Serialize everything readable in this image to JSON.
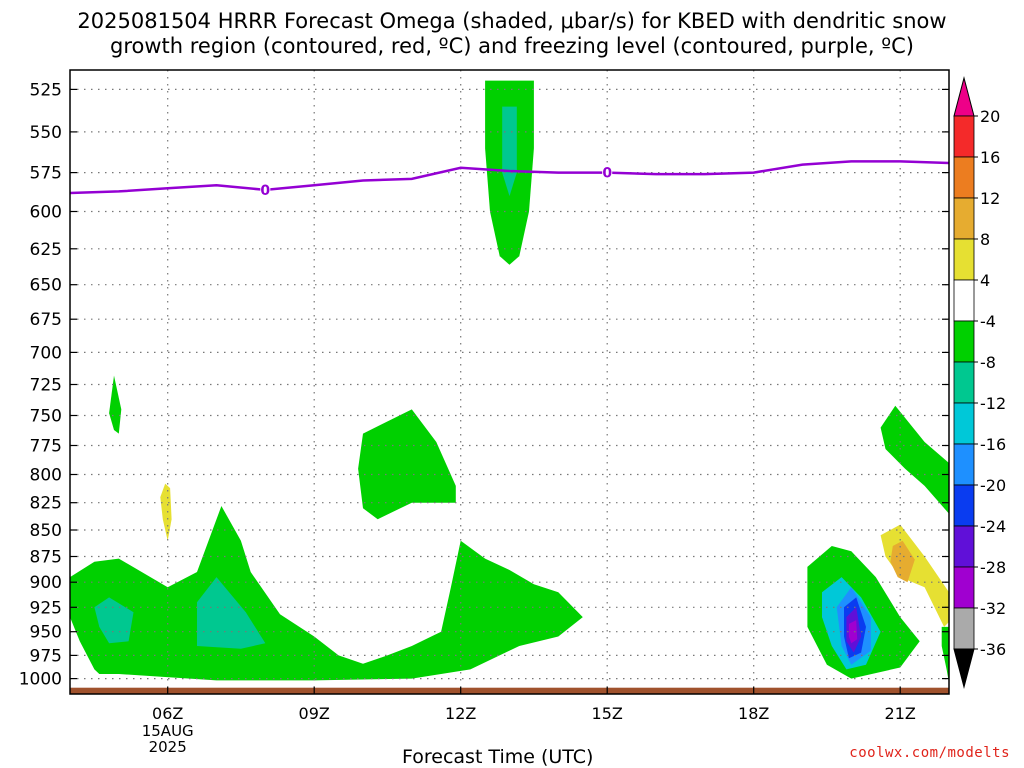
{
  "title_line1": "2025081504 HRRR Forecast Omega (shaded, μbar/s) for KBED with dendritic snow",
  "title_line2": "growth region (contoured, red, ºC) and freezing level (contoured, purple, ºC)",
  "credit": "coolwx.com/modelts",
  "chart_data": {
    "type": "heatmap",
    "xlabel": "Forecast Time (UTC)",
    "x_ticks": [
      {
        "hour": 6,
        "label": "06Z",
        "sub": [
          "15AUG",
          "2025"
        ]
      },
      {
        "hour": 9,
        "label": "09Z"
      },
      {
        "hour": 12,
        "label": "12Z"
      },
      {
        "hour": 15,
        "label": "15Z"
      },
      {
        "hour": 18,
        "label": "18Z"
      },
      {
        "hour": 21,
        "label": "21Z"
      }
    ],
    "x_range_hours": [
      4,
      22
    ],
    "y_ticks": [
      525,
      550,
      575,
      600,
      625,
      650,
      675,
      700,
      725,
      750,
      775,
      800,
      825,
      850,
      875,
      900,
      925,
      950,
      975,
      1000
    ],
    "y_range_hPa": [
      514,
      1017
    ],
    "y_scale": "log-pressure",
    "grid": "dotted",
    "colorbar": {
      "labels": [
        "20",
        "16",
        "12",
        "8",
        "4",
        "-4",
        "-8",
        "-12",
        "-16",
        "-20",
        "-24",
        "-28",
        "-32",
        "-36"
      ],
      "colors": [
        "#ee0088",
        "#f42a2a",
        "#ec7d20",
        "#e6ac30",
        "#e6e032",
        "#ffffff",
        "#00d000",
        "#00c890",
        "#00c8d8",
        "#1e90ff",
        "#0a3cf0",
        "#6010d8",
        "#a000d0",
        "#aaaaaa",
        "#000000"
      ]
    },
    "freezing_level": {
      "label": "0",
      "color": "#9400d3",
      "points": [
        [
          4.0,
          588
        ],
        [
          5.0,
          587
        ],
        [
          6.0,
          585
        ],
        [
          7.0,
          583
        ],
        [
          8.0,
          586
        ],
        [
          9.0,
          583
        ],
        [
          10.0,
          580
        ],
        [
          11.0,
          579
        ],
        [
          12.0,
          572
        ],
        [
          13.0,
          574
        ],
        [
          14.0,
          575
        ],
        [
          15.0,
          575
        ],
        [
          16.0,
          576
        ],
        [
          17.0,
          576
        ],
        [
          18.0,
          575
        ],
        [
          19.0,
          570
        ],
        [
          20.0,
          568
        ],
        [
          21.0,
          568
        ],
        [
          22.0,
          569
        ]
      ]
    },
    "omega_regions": [
      {
        "color": "#00d000",
        "points": [
          [
            12.5,
            520
          ],
          [
            13.5,
            520
          ],
          [
            13.5,
            560
          ],
          [
            13.4,
            600
          ],
          [
            13.2,
            630
          ],
          [
            13.0,
            636
          ],
          [
            12.8,
            630
          ],
          [
            12.6,
            600
          ],
          [
            12.5,
            560
          ]
        ]
      },
      {
        "color": "#00c890",
        "points": [
          [
            12.85,
            535
          ],
          [
            13.15,
            535
          ],
          [
            13.15,
            575
          ],
          [
            13.0,
            590
          ],
          [
            12.85,
            575
          ]
        ]
      },
      {
        "color": "#00d000",
        "points": [
          [
            4.9,
            718
          ],
          [
            5.05,
            745
          ],
          [
            5.0,
            765
          ],
          [
            4.9,
            762
          ],
          [
            4.8,
            748
          ]
        ]
      },
      {
        "color": "#e6e032",
        "points": [
          [
            5.95,
            808
          ],
          [
            6.05,
            812
          ],
          [
            6.08,
            840
          ],
          [
            6.0,
            860
          ],
          [
            5.9,
            840
          ],
          [
            5.85,
            820
          ]
        ]
      },
      {
        "color": "#00d000",
        "points": [
          [
            3.9,
            895
          ],
          [
            4.5,
            880
          ],
          [
            5.0,
            877
          ],
          [
            6.0,
            905
          ],
          [
            6.6,
            890
          ],
          [
            7.1,
            828
          ],
          [
            7.5,
            860
          ],
          [
            7.7,
            890
          ],
          [
            8.3,
            932
          ],
          [
            9.0,
            955
          ],
          [
            9.5,
            975
          ],
          [
            10.0,
            984
          ],
          [
            10.5,
            975
          ],
          [
            11.0,
            965
          ],
          [
            11.6,
            950
          ],
          [
            11.8,
            905
          ],
          [
            12.0,
            860
          ],
          [
            12.5,
            877
          ],
          [
            13.0,
            888
          ],
          [
            13.5,
            902
          ],
          [
            14.0,
            910
          ],
          [
            14.5,
            935
          ],
          [
            14.0,
            955
          ],
          [
            13.2,
            965
          ],
          [
            12.2,
            990
          ],
          [
            11.0,
            1000
          ],
          [
            9.0,
            1002
          ],
          [
            7.0,
            1002
          ],
          [
            5.0,
            995
          ],
          [
            4.6,
            995
          ],
          [
            4.5,
            990
          ],
          [
            4.2,
            960
          ],
          [
            3.9,
            935
          ]
        ]
      },
      {
        "color": "#00c890",
        "points": [
          [
            4.8,
            915
          ],
          [
            5.3,
            930
          ],
          [
            5.2,
            960
          ],
          [
            4.8,
            962
          ],
          [
            4.6,
            945
          ],
          [
            4.5,
            925
          ]
        ]
      },
      {
        "color": "#00c890",
        "points": [
          [
            6.6,
            920
          ],
          [
            7.0,
            895
          ],
          [
            7.6,
            930
          ],
          [
            8.0,
            962
          ],
          [
            7.5,
            968
          ],
          [
            6.6,
            965
          ]
        ]
      },
      {
        "color": "#00d000",
        "points": [
          [
            9.9,
            795
          ],
          [
            10.0,
            765
          ],
          [
            11.0,
            745
          ],
          [
            11.5,
            772
          ],
          [
            11.9,
            810
          ],
          [
            11.9,
            825
          ],
          [
            11.0,
            825
          ],
          [
            10.3,
            840
          ],
          [
            10.0,
            830
          ]
        ]
      },
      {
        "color": "#00d000",
        "points": [
          [
            19.1,
            885
          ],
          [
            19.6,
            865
          ],
          [
            20.0,
            870
          ],
          [
            20.5,
            895
          ],
          [
            21.0,
            935
          ],
          [
            21.4,
            960
          ],
          [
            21.0,
            988
          ],
          [
            20.0,
            1000
          ],
          [
            19.5,
            985
          ],
          [
            19.1,
            945
          ]
        ]
      },
      {
        "color": "#00c8d8",
        "points": [
          [
            19.4,
            910
          ],
          [
            19.8,
            895
          ],
          [
            20.2,
            915
          ],
          [
            20.6,
            950
          ],
          [
            20.3,
            985
          ],
          [
            19.9,
            990
          ],
          [
            19.6,
            965
          ],
          [
            19.4,
            935
          ]
        ]
      },
      {
        "color": "#1e90ff",
        "points": [
          [
            19.7,
            925
          ],
          [
            20.0,
            905
          ],
          [
            20.4,
            935
          ],
          [
            20.4,
            970
          ],
          [
            20.0,
            985
          ],
          [
            19.8,
            965
          ]
        ]
      },
      {
        "color": "#0a3cf0",
        "points": [
          [
            19.85,
            925
          ],
          [
            20.1,
            915
          ],
          [
            20.3,
            945
          ],
          [
            20.2,
            972
          ],
          [
            19.95,
            978
          ],
          [
            19.85,
            955
          ]
        ]
      },
      {
        "color": "#6010d8",
        "points": [
          [
            19.9,
            935
          ],
          [
            20.1,
            925
          ],
          [
            20.2,
            955
          ],
          [
            20.05,
            972
          ],
          [
            19.9,
            960
          ]
        ]
      },
      {
        "color": "#a000d0",
        "points": [
          [
            19.95,
            942
          ],
          [
            20.1,
            938
          ],
          [
            20.12,
            958
          ],
          [
            20.0,
            962
          ],
          [
            19.95,
            955
          ]
        ]
      },
      {
        "color": "#00d000",
        "points": [
          [
            20.6,
            760
          ],
          [
            20.9,
            742
          ],
          [
            21.5,
            772
          ],
          [
            22.0,
            790
          ],
          [
            22.2,
            800
          ],
          [
            22.0,
            835
          ],
          [
            21.5,
            810
          ],
          [
            21.1,
            795
          ],
          [
            20.7,
            778
          ]
        ]
      },
      {
        "color": "#e6e032",
        "points": [
          [
            20.6,
            855
          ],
          [
            21.0,
            845
          ],
          [
            21.5,
            875
          ],
          [
            22.0,
            910
          ],
          [
            22.2,
            915
          ],
          [
            22.2,
            940
          ],
          [
            21.9,
            945
          ],
          [
            21.5,
            905
          ],
          [
            21.0,
            895
          ],
          [
            20.7,
            875
          ]
        ]
      },
      {
        "color": "#e6ac30",
        "points": [
          [
            20.85,
            865
          ],
          [
            21.05,
            860
          ],
          [
            21.3,
            878
          ],
          [
            21.15,
            900
          ],
          [
            20.95,
            895
          ],
          [
            20.8,
            880
          ]
        ]
      },
      {
        "color": "#00d000",
        "points": [
          [
            21.85,
            945
          ],
          [
            22.2,
            945
          ],
          [
            22.2,
            1005
          ],
          [
            21.95,
            990
          ],
          [
            21.85,
            965
          ]
        ]
      }
    ],
    "ground": {
      "color": "#a0522d",
      "from_hPa": 1010
    }
  }
}
